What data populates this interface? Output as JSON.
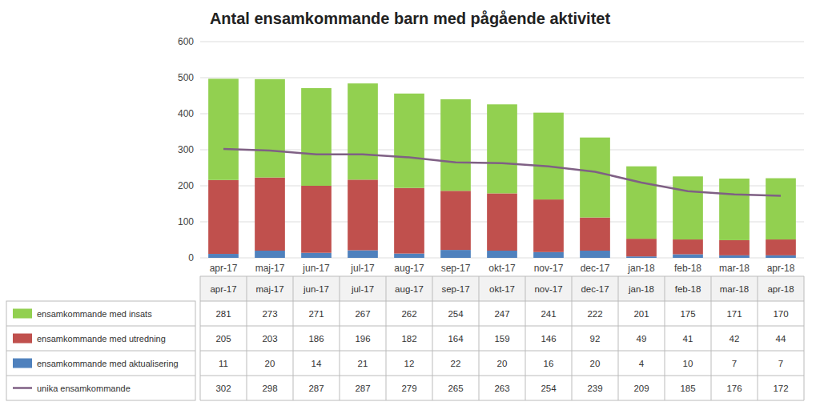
{
  "chart_data": {
    "type": "bar",
    "title": "Antal ensamkommande barn med pågående aktivitet",
    "categories": [
      "apr-17",
      "maj-17",
      "jun-17",
      "jul-17",
      "aug-17",
      "sep-17",
      "okt-17",
      "nov-17",
      "dec-17",
      "jan-18",
      "feb-18",
      "mar-18",
      "apr-18"
    ],
    "series": [
      {
        "name": "ensamkommande med insats",
        "color": "#92d050",
        "values": [
          281,
          273,
          271,
          267,
          262,
          254,
          247,
          241,
          222,
          201,
          175,
          171,
          170
        ]
      },
      {
        "name": "ensamkommande med utredning",
        "color": "#c0504d",
        "values": [
          205,
          203,
          186,
          196,
          182,
          164,
          159,
          146,
          92,
          49,
          41,
          42,
          44
        ]
      },
      {
        "name": "ensamkommande med aktualisering",
        "color": "#4f81bd",
        "values": [
          11,
          20,
          14,
          21,
          12,
          22,
          20,
          16,
          20,
          4,
          10,
          7,
          7
        ]
      },
      {
        "name": "unika ensamkommande",
        "color": "#7f6084",
        "type": "line",
        "values": [
          302,
          298,
          287,
          287,
          279,
          265,
          263,
          254,
          239,
          209,
          185,
          176,
          172
        ]
      }
    ],
    "stacked": true,
    "ylim": [
      0,
      600
    ],
    "yticks": [
      0,
      100,
      200,
      300,
      400,
      500,
      600
    ],
    "grid": true,
    "legend": "bottom-left"
  }
}
